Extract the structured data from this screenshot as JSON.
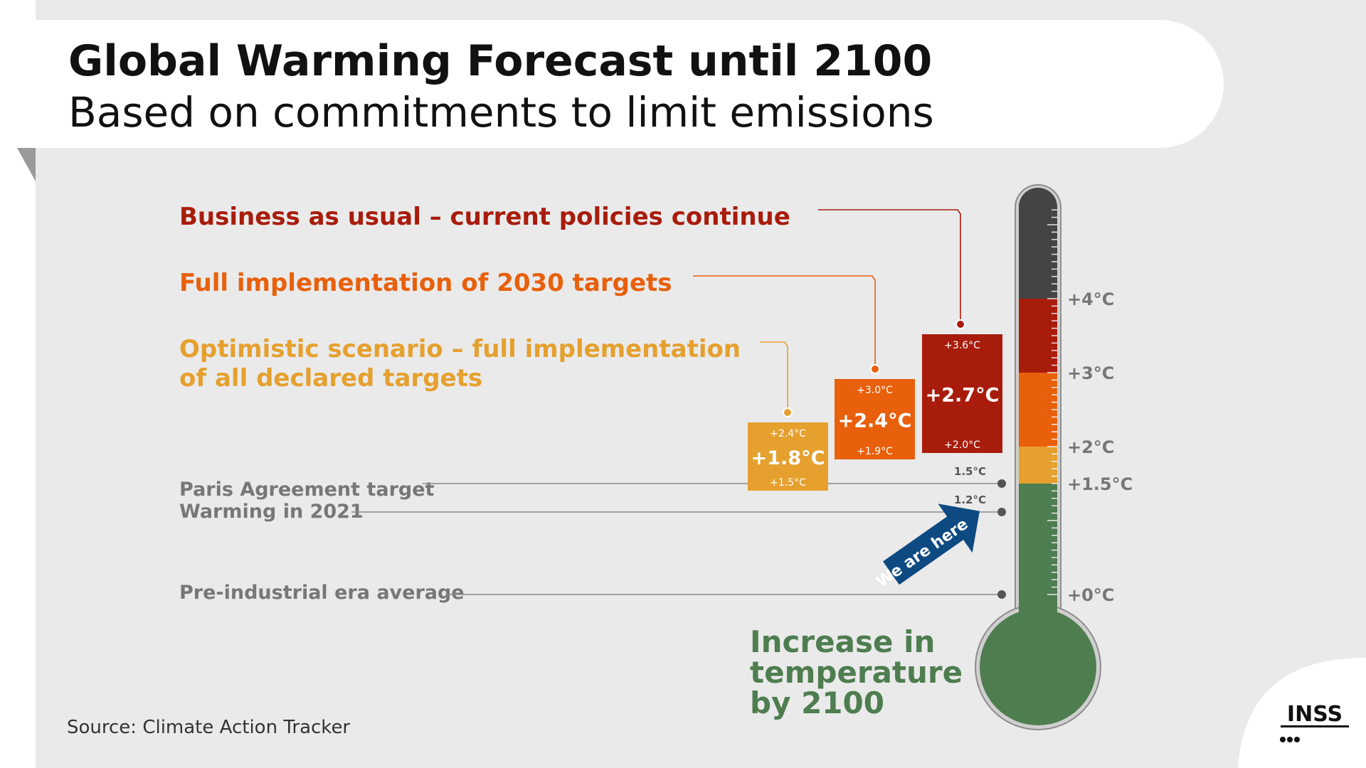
{
  "header": {
    "title": "Global Warming Forecast until 2100",
    "subtitle": "Based on commitments to limit emissions"
  },
  "chart_data": {
    "type": "bar",
    "title": "Global Warming Forecast until 2100",
    "subtitle": "Based on commitments to limit emissions",
    "scale_min": 0,
    "scale_max": 5,
    "scenarios": [
      {
        "name": "Optimistic scenario – full implementation of all declared targets",
        "name_lines": [
          "Optimistic scenario – full implementation",
          "of all declared targets"
        ],
        "low": 1.5,
        "mid": 1.8,
        "high": 2.4,
        "low_label": "+1.5°C",
        "mid_label": "+1.8°C",
        "high_label": "+2.4°C",
        "color": "#e5a02e"
      },
      {
        "name": "Full implementation of 2030 targets",
        "name_lines": [
          "Full implementation of 2030 targets"
        ],
        "low": 1.9,
        "mid": 2.4,
        "high": 3.0,
        "low_label": "+1.9°C",
        "mid_label": "+2.4°C",
        "high_label": "+3.0°C",
        "color": "#e8600c"
      },
      {
        "name": "Business as usual – current policies continue",
        "name_lines": [
          "Business as usual – current policies continue"
        ],
        "low": 2.0,
        "mid": 2.7,
        "high": 3.6,
        "low_label": "+2.0°C",
        "mid_label": "+2.7°C",
        "high_label": "+3.6°C",
        "color": "#a81c0c"
      }
    ],
    "reference_lines": [
      {
        "label": "Paris Agreement target",
        "value": 1.5,
        "value_label": "1.5°C"
      },
      {
        "label": "Warming in 2021",
        "value": 1.2,
        "value_label": "1.2°C"
      },
      {
        "label": "Pre-industrial era average",
        "value": 0,
        "value_label": ""
      }
    ],
    "thermometer_ticks": [
      {
        "value": 4,
        "label": "+4°C"
      },
      {
        "value": 3,
        "label": "+3°C"
      },
      {
        "value": 2,
        "label": "+2°C"
      },
      {
        "value": 1.5,
        "label": "+1.5°C"
      },
      {
        "value": 0,
        "label": "+0°C"
      }
    ],
    "thermometer_bands": [
      {
        "from": 4,
        "to": 5,
        "color": "#444444"
      },
      {
        "from": 3,
        "to": 4,
        "color": "#a81c0c"
      },
      {
        "from": 2,
        "to": 3,
        "color": "#e8600c"
      },
      {
        "from": 1.5,
        "to": 2,
        "color": "#e5a02e"
      },
      {
        "from": 0,
        "to": 1.5,
        "color": "#4e7d4f"
      }
    ],
    "marker_label": "We are here",
    "axis_title_lines": [
      "Increase in",
      "temperature",
      "by 2100"
    ]
  },
  "source": "Source: Climate Action Tracker",
  "logo": {
    "text": "INSS"
  },
  "colors": {
    "background": "#eaeaea",
    "title": "#111111",
    "reference_text": "#777777",
    "tick_text": "#777777",
    "axis_title": "#4e7d4f",
    "marker": "#0d4a82"
  }
}
